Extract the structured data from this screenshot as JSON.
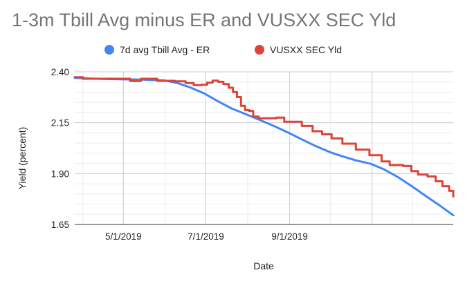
{
  "chart_data": {
    "type": "line",
    "title": "1-3m Tbill Avg minus ER and VUSXX SEC Yld",
    "xlabel": "Date",
    "ylabel": "Yield (percent)",
    "ylim": [
      1.65,
      2.4
    ],
    "yticks": [
      "2.40",
      "2.15",
      "1.90",
      "1.65"
    ],
    "xlim": [
      "2019-03-26",
      "2019-12-31"
    ],
    "xticks": [
      "5/1/2019",
      "7/1/2019",
      "9/1/2019"
    ],
    "grid": true,
    "legend_position": "top",
    "series": [
      {
        "name": "7d avg Tbill Avg - ER",
        "color": "#4285f4",
        "points": [
          [
            "2019-03-26",
            2.37
          ],
          [
            "2019-04-01",
            2.368
          ],
          [
            "2019-04-15",
            2.365
          ],
          [
            "2019-05-01",
            2.363
          ],
          [
            "2019-05-15",
            2.362
          ],
          [
            "2019-05-31",
            2.358
          ],
          [
            "2019-06-10",
            2.345
          ],
          [
            "2019-06-20",
            2.322
          ],
          [
            "2019-06-30",
            2.293
          ],
          [
            "2019-07-10",
            2.255
          ],
          [
            "2019-07-20",
            2.22
          ],
          [
            "2019-08-01",
            2.188
          ],
          [
            "2019-08-10",
            2.163
          ],
          [
            "2019-08-20",
            2.135
          ],
          [
            "2019-09-01",
            2.098
          ],
          [
            "2019-09-10",
            2.068
          ],
          [
            "2019-09-20",
            2.036
          ],
          [
            "2019-10-01",
            2.005
          ],
          [
            "2019-10-10",
            1.985
          ],
          [
            "2019-10-20",
            1.965
          ],
          [
            "2019-10-31",
            1.948
          ],
          [
            "2019-11-10",
            1.92
          ],
          [
            "2019-11-20",
            1.883
          ],
          [
            "2019-12-01",
            1.835
          ],
          [
            "2019-12-10",
            1.793
          ],
          [
            "2019-12-20",
            1.748
          ],
          [
            "2019-12-31",
            1.695
          ]
        ]
      },
      {
        "name": "VUSXX SEC Yld",
        "color": "#db4437",
        "points": [
          [
            "2019-03-26",
            2.374
          ],
          [
            "2019-03-31",
            2.374
          ],
          [
            "2019-04-01",
            2.366
          ],
          [
            "2019-04-25",
            2.366
          ],
          [
            "2019-05-05",
            2.366
          ],
          [
            "2019-05-06",
            2.355
          ],
          [
            "2019-05-13",
            2.355
          ],
          [
            "2019-05-14",
            2.366
          ],
          [
            "2019-05-25",
            2.366
          ],
          [
            "2019-05-26",
            2.356
          ],
          [
            "2019-06-08",
            2.353
          ],
          [
            "2019-06-16",
            2.345
          ],
          [
            "2019-06-22",
            2.335
          ],
          [
            "2019-06-28",
            2.337
          ],
          [
            "2019-07-02",
            2.347
          ],
          [
            "2019-07-06",
            2.357
          ],
          [
            "2019-07-10",
            2.351
          ],
          [
            "2019-07-14",
            2.34
          ],
          [
            "2019-07-18",
            2.322
          ],
          [
            "2019-07-21",
            2.301
          ],
          [
            "2019-07-24",
            2.276
          ],
          [
            "2019-07-27",
            2.233
          ],
          [
            "2019-07-30",
            2.212
          ],
          [
            "2019-08-02",
            2.208
          ],
          [
            "2019-08-05",
            2.18
          ],
          [
            "2019-08-09",
            2.172
          ],
          [
            "2019-08-16",
            2.172
          ],
          [
            "2019-08-22",
            2.175
          ],
          [
            "2019-08-28",
            2.155
          ],
          [
            "2019-09-04",
            2.155
          ],
          [
            "2019-09-10",
            2.134
          ],
          [
            "2019-09-18",
            2.108
          ],
          [
            "2019-09-25",
            2.093
          ],
          [
            "2019-10-02",
            2.073
          ],
          [
            "2019-10-10",
            2.047
          ],
          [
            "2019-10-20",
            2.018
          ],
          [
            "2019-10-30",
            1.99
          ],
          [
            "2019-11-08",
            1.96
          ],
          [
            "2019-11-14",
            1.942
          ],
          [
            "2019-11-24",
            1.937
          ],
          [
            "2019-11-30",
            1.912
          ],
          [
            "2019-12-05",
            1.895
          ],
          [
            "2019-12-12",
            1.886
          ],
          [
            "2019-12-18",
            1.862
          ],
          [
            "2019-12-23",
            1.838
          ],
          [
            "2019-12-28",
            1.815
          ],
          [
            "2019-12-31",
            1.787
          ]
        ]
      }
    ]
  }
}
